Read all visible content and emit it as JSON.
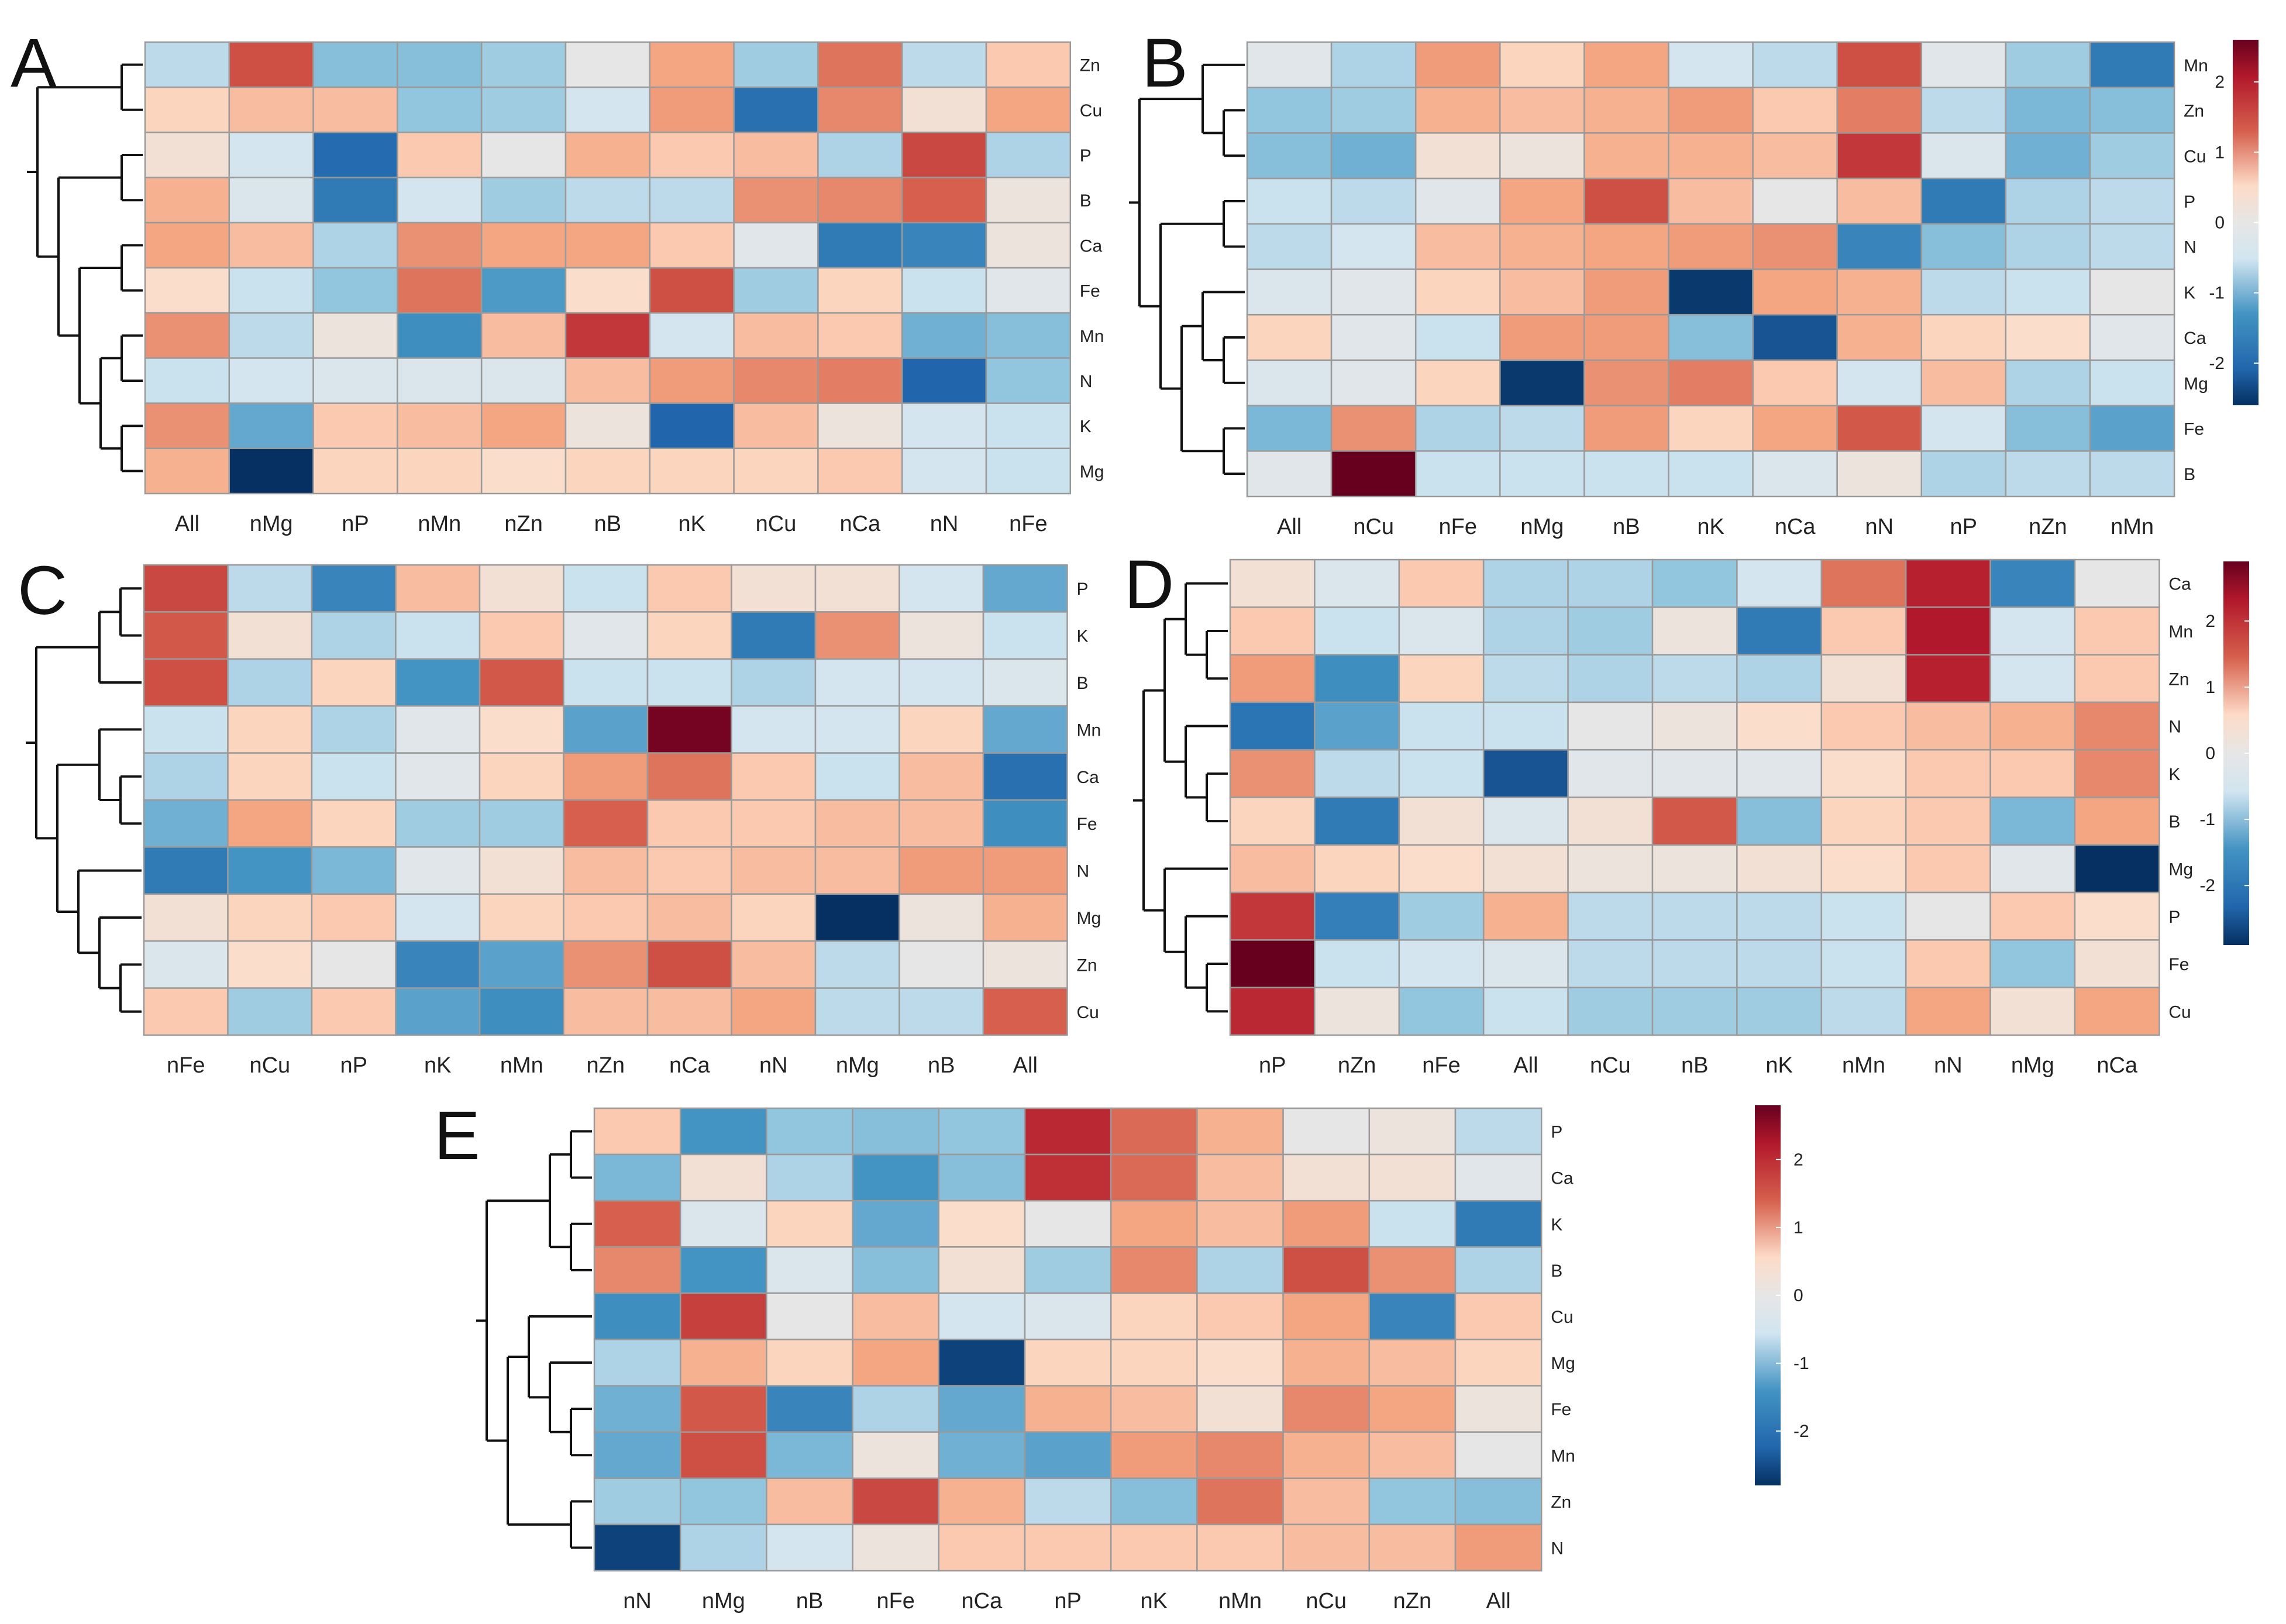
{
  "figure": {
    "colors": {
      "low": "#053061",
      "lowmid": "#2166ac",
      "mid1": "#4393c3",
      "mid2": "#92c5de",
      "mid3": "#d1e5f0",
      "neutral": "#e6e6e6",
      "mid4": "#fddbc7",
      "mid5": "#f4a582",
      "mid6": "#d6604d",
      "highmid": "#b2182b",
      "high": "#67001f",
      "grid": "#9a9a9a"
    }
  },
  "chart_data": [
    {
      "type": "heatmap",
      "panel": "A",
      "columns": [
        "All",
        "nMg",
        "nP",
        "nMn",
        "nZn",
        "nB",
        "nK",
        "nCu",
        "nCa",
        "nN",
        "nFe"
      ],
      "rows": [
        "Zn",
        "Cu",
        "P",
        "B",
        "Ca",
        "Fe",
        "Mn",
        "N",
        "K",
        "Mg"
      ],
      "values": [
        [
          -0.5,
          1.7,
          -0.9,
          -0.9,
          -0.7,
          0.0,
          0.8,
          -0.7,
          1.3,
          -0.5,
          0.5
        ],
        [
          0.4,
          0.6,
          0.6,
          -0.8,
          -0.7,
          -0.3,
          0.9,
          -2.2,
          1.1,
          0.2,
          0.8
        ],
        [
          0.2,
          -0.3,
          -2.3,
          0.5,
          0.0,
          0.7,
          0.5,
          0.6,
          -0.6,
          1.8,
          -0.6
        ],
        [
          0.7,
          -0.2,
          -2.0,
          -0.3,
          -0.7,
          -0.5,
          -0.5,
          1.0,
          1.1,
          1.5,
          0.1
        ],
        [
          0.8,
          0.6,
          -0.6,
          1.0,
          0.8,
          0.8,
          0.5,
          -0.1,
          -2.0,
          -1.8,
          0.1
        ],
        [
          0.3,
          -0.4,
          -0.8,
          1.3,
          -1.4,
          0.3,
          1.7,
          -0.7,
          0.4,
          -0.4,
          -0.1
        ],
        [
          1.0,
          -0.5,
          0.1,
          -1.6,
          0.6,
          2.0,
          -0.3,
          0.6,
          0.5,
          -1.1,
          -0.9
        ],
        [
          -0.4,
          -0.3,
          -0.2,
          -0.2,
          -0.2,
          0.6,
          0.9,
          1.1,
          1.2,
          -2.4,
          -0.8
        ],
        [
          1.0,
          -1.2,
          0.5,
          0.6,
          0.8,
          0.1,
          -2.4,
          0.6,
          0.1,
          -0.3,
          -0.4
        ],
        [
          0.7,
          -3.0,
          0.4,
          0.4,
          0.3,
          0.4,
          0.4,
          0.4,
          0.5,
          -0.3,
          -0.4
        ]
      ]
    },
    {
      "type": "heatmap",
      "panel": "B",
      "columns": [
        "All",
        "nCu",
        "nFe",
        "nMg",
        "nB",
        "nK",
        "nCa",
        "nN",
        "nP",
        "nZn",
        "nMn"
      ],
      "rows": [
        "Mn",
        "Zn",
        "Cu",
        "P",
        "N",
        "K",
        "Ca",
        "Mg",
        "Fe",
        "B"
      ],
      "values": [
        [
          -0.1,
          -0.6,
          0.9,
          0.4,
          0.8,
          -0.3,
          -0.5,
          1.7,
          -0.1,
          -0.7,
          -2.0
        ],
        [
          -0.8,
          -0.7,
          0.7,
          0.6,
          0.7,
          0.9,
          0.5,
          1.2,
          -0.5,
          -1.0,
          -0.9
        ],
        [
          -0.9,
          -1.1,
          0.2,
          0.1,
          0.7,
          0.7,
          0.6,
          2.0,
          -0.2,
          -1.1,
          -0.7
        ],
        [
          -0.4,
          -0.5,
          -0.1,
          0.8,
          1.7,
          0.6,
          0.0,
          0.6,
          -2.0,
          -0.6,
          -0.5
        ],
        [
          -0.5,
          -0.3,
          0.6,
          0.7,
          0.8,
          0.9,
          1.0,
          -1.8,
          -0.9,
          -0.6,
          -0.5
        ],
        [
          -0.2,
          -0.1,
          0.4,
          0.6,
          0.9,
          -2.9,
          0.8,
          0.7,
          -0.5,
          -0.4,
          0.0
        ],
        [
          0.4,
          -0.1,
          -0.4,
          0.9,
          0.9,
          -0.9,
          -2.6,
          0.7,
          0.4,
          0.3,
          -0.1
        ],
        [
          -0.2,
          -0.1,
          0.4,
          -2.9,
          1.0,
          1.2,
          0.5,
          -0.3,
          0.6,
          -0.6,
          -0.4
        ],
        [
          -1.0,
          1.0,
          -0.6,
          -0.5,
          0.9,
          0.4,
          0.8,
          1.6,
          -0.3,
          -0.9,
          -1.3
        ],
        [
          -0.1,
          3.6,
          -0.4,
          -0.4,
          -0.4,
          -0.4,
          -0.2,
          0.1,
          -0.6,
          -0.5,
          -0.5
        ]
      ],
      "colorbar_ticks": [
        "2",
        "1",
        "0",
        "-1",
        "-2"
      ],
      "colorbar_values": [
        2,
        1,
        0,
        -1,
        -2
      ],
      "colorbar_range": [
        -2.6,
        2.6
      ]
    },
    {
      "type": "heatmap",
      "panel": "C",
      "columns": [
        "nFe",
        "nCu",
        "nP",
        "nK",
        "nMn",
        "nZn",
        "nCa",
        "nN",
        "nMg",
        "nB",
        "All"
      ],
      "rows": [
        "P",
        "K",
        "B",
        "Mn",
        "Ca",
        "Fe",
        "N",
        "Mg",
        "Zn",
        "Cu"
      ],
      "values": [
        [
          1.8,
          -0.5,
          -1.8,
          0.6,
          0.2,
          -0.4,
          0.5,
          0.2,
          0.2,
          -0.3,
          -1.2
        ],
        [
          1.6,
          0.2,
          -0.6,
          -0.4,
          0.5,
          -0.1,
          0.4,
          -2.0,
          1.0,
          0.1,
          -0.4
        ],
        [
          1.7,
          -0.6,
          0.4,
          -1.5,
          1.6,
          -0.4,
          -0.4,
          -0.6,
          -0.3,
          -0.3,
          -0.2
        ],
        [
          -0.4,
          0.4,
          -0.6,
          -0.1,
          0.3,
          -1.3,
          2.9,
          -0.3,
          -0.3,
          0.4,
          -1.2
        ],
        [
          -0.6,
          0.4,
          -0.4,
          -0.1,
          0.4,
          0.9,
          1.3,
          0.5,
          -0.4,
          0.6,
          -2.2
        ],
        [
          -1.1,
          0.8,
          0.4,
          -0.7,
          -0.7,
          1.5,
          0.5,
          0.5,
          0.6,
          0.6,
          -1.6
        ],
        [
          -2.0,
          -1.5,
          -1.0,
          -0.1,
          0.2,
          0.6,
          0.5,
          0.6,
          0.6,
          0.9,
          0.9
        ],
        [
          0.2,
          0.4,
          0.5,
          -0.3,
          0.4,
          0.5,
          0.6,
          0.4,
          -3.0,
          0.1,
          0.7
        ],
        [
          -0.2,
          0.3,
          0.0,
          -1.8,
          -1.3,
          1.0,
          1.7,
          0.6,
          -0.5,
          0.0,
          0.1
        ],
        [
          0.5,
          -0.7,
          0.5,
          -1.3,
          -1.6,
          0.6,
          0.6,
          0.8,
          -0.5,
          -0.5,
          1.5
        ]
      ]
    },
    {
      "type": "heatmap",
      "panel": "D",
      "columns": [
        "nP",
        "nZn",
        "nFe",
        "All",
        "nCu",
        "nB",
        "nK",
        "nMn",
        "nN",
        "nMg",
        "nCa"
      ],
      "rows": [
        "Ca",
        "Mn",
        "Zn",
        "N",
        "K",
        "B",
        "Mg",
        "P",
        "Fe",
        "Cu"
      ],
      "values": [
        [
          0.2,
          -0.2,
          0.5,
          -0.6,
          -0.6,
          -0.8,
          -0.3,
          1.3,
          2.3,
          -1.8,
          0.0
        ],
        [
          0.5,
          -0.4,
          -0.2,
          -0.6,
          -0.7,
          0.1,
          -2.0,
          0.5,
          2.4,
          -0.3,
          0.5
        ],
        [
          0.9,
          -1.6,
          0.4,
          -0.5,
          -0.6,
          -0.5,
          -0.6,
          0.2,
          2.3,
          -0.3,
          0.5
        ],
        [
          -2.1,
          -1.3,
          -0.4,
          -0.4,
          0.0,
          0.1,
          0.3,
          0.5,
          0.6,
          0.7,
          1.1
        ],
        [
          1.0,
          -0.5,
          -0.4,
          -2.6,
          -0.1,
          -0.1,
          -0.1,
          0.3,
          0.5,
          0.5,
          1.1
        ],
        [
          0.4,
          -2.0,
          0.2,
          -0.2,
          0.2,
          1.6,
          -0.9,
          0.4,
          0.5,
          -1.0,
          0.8
        ],
        [
          0.6,
          0.4,
          0.3,
          0.2,
          0.1,
          0.1,
          0.2,
          0.3,
          0.5,
          -0.1,
          -3.0
        ],
        [
          2.0,
          -1.9,
          -0.7,
          0.7,
          -0.5,
          -0.5,
          -0.5,
          -0.4,
          0.0,
          0.5,
          0.3
        ],
        [
          3.0,
          -0.4,
          -0.3,
          -0.2,
          -0.5,
          -0.5,
          -0.5,
          -0.4,
          0.5,
          -0.8,
          0.2
        ],
        [
          2.2,
          0.1,
          -0.8,
          -0.4,
          -0.7,
          -0.7,
          -0.7,
          -0.5,
          0.8,
          0.2,
          0.8
        ]
      ],
      "colorbar_ticks": [
        "2",
        "1",
        "0",
        "-1",
        "-2"
      ],
      "colorbar_values": [
        2,
        1,
        0,
        -1,
        -2
      ],
      "colorbar_range": [
        -2.9,
        2.9
      ]
    },
    {
      "type": "heatmap",
      "panel": "E",
      "columns": [
        "nN",
        "nMg",
        "nB",
        "nFe",
        "nCa",
        "nP",
        "nK",
        "nMn",
        "nCu",
        "nZn",
        "All"
      ],
      "rows": [
        "P",
        "Ca",
        "K",
        "B",
        "Cu",
        "Mg",
        "Fe",
        "Mn",
        "Zn",
        "N"
      ],
      "values": [
        [
          0.5,
          -1.5,
          -0.8,
          -0.9,
          -0.8,
          2.2,
          1.4,
          0.7,
          0.0,
          0.1,
          -0.5
        ],
        [
          -1.0,
          0.2,
          -0.6,
          -1.5,
          -0.9,
          2.1,
          1.4,
          0.6,
          0.2,
          0.2,
          -0.1
        ],
        [
          1.5,
          -0.2,
          0.4,
          -1.2,
          0.3,
          0.0,
          0.8,
          0.6,
          0.9,
          -0.4,
          -2.0
        ],
        [
          1.1,
          -1.5,
          -0.2,
          -0.9,
          0.2,
          -0.7,
          1.1,
          -0.6,
          1.7,
          1.0,
          -0.6
        ],
        [
          -1.6,
          1.9,
          0.0,
          0.6,
          -0.3,
          -0.2,
          0.4,
          0.5,
          0.8,
          -1.8,
          0.5
        ],
        [
          -0.6,
          0.7,
          0.4,
          0.8,
          -2.8,
          0.4,
          0.4,
          0.3,
          0.7,
          0.6,
          0.4
        ],
        [
          -1.1,
          1.6,
          -1.8,
          -0.6,
          -1.2,
          0.7,
          0.6,
          0.2,
          1.1,
          0.8,
          0.1
        ],
        [
          -1.2,
          1.7,
          -1.0,
          0.1,
          -1.1,
          -1.3,
          0.9,
          1.1,
          0.7,
          0.6,
          0.0
        ],
        [
          -0.7,
          -0.8,
          0.6,
          1.8,
          0.7,
          -0.5,
          -0.9,
          1.3,
          0.6,
          -0.8,
          -0.9
        ],
        [
          -2.8,
          -0.6,
          -0.3,
          0.1,
          0.5,
          0.5,
          0.5,
          0.5,
          0.6,
          0.6,
          0.9
        ]
      ],
      "colorbar_ticks": [
        "2",
        "1",
        "0",
        "-1",
        "-2"
      ],
      "colorbar_values": [
        2,
        1,
        0,
        -1,
        -2
      ],
      "colorbar_range": [
        -2.8,
        2.8
      ]
    }
  ]
}
